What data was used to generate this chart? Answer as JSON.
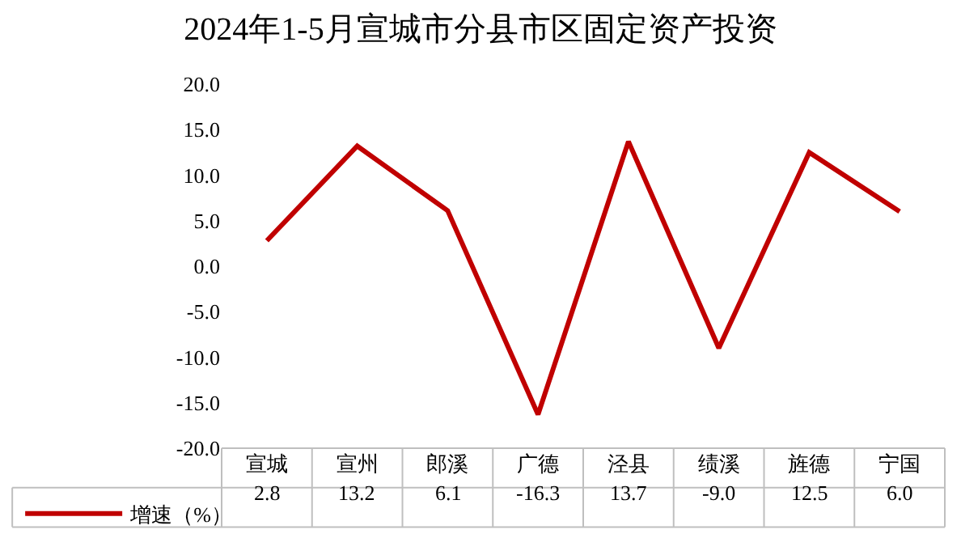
{
  "chart_data": {
    "type": "line",
    "title": "2024年1-5月宣城市分县市区固定资产投资",
    "categories": [
      "宣城",
      "宣州",
      "郎溪",
      "广德",
      "泾县",
      "绩溪",
      "旌德",
      "宁国"
    ],
    "series": [
      {
        "name": "增速（%）",
        "color": "#c00000",
        "values": [
          2.8,
          13.2,
          6.1,
          -16.3,
          13.7,
          -9.0,
          12.5,
          6.0
        ],
        "value_labels": [
          "2.8",
          "13.2",
          "6.1",
          "-16.3",
          "13.7",
          "-9.0",
          "12.5",
          "6.0"
        ]
      }
    ],
    "ylim": [
      -20,
      20
    ],
    "yticks": [
      {
        "value": -20,
        "label": "-20.0"
      },
      {
        "value": -15,
        "label": "-15.0"
      },
      {
        "value": -10,
        "label": "-10.0"
      },
      {
        "value": -5,
        "label": "-5.0"
      },
      {
        "value": 0,
        "label": "0.0"
      },
      {
        "value": 5,
        "label": "5.0"
      },
      {
        "value": 10,
        "label": "10.0"
      },
      {
        "value": 15,
        "label": "15.0"
      },
      {
        "value": 20,
        "label": "20.0"
      }
    ],
    "grid": false,
    "legend": "bottom left",
    "marker": "none",
    "line_style": "solid"
  }
}
